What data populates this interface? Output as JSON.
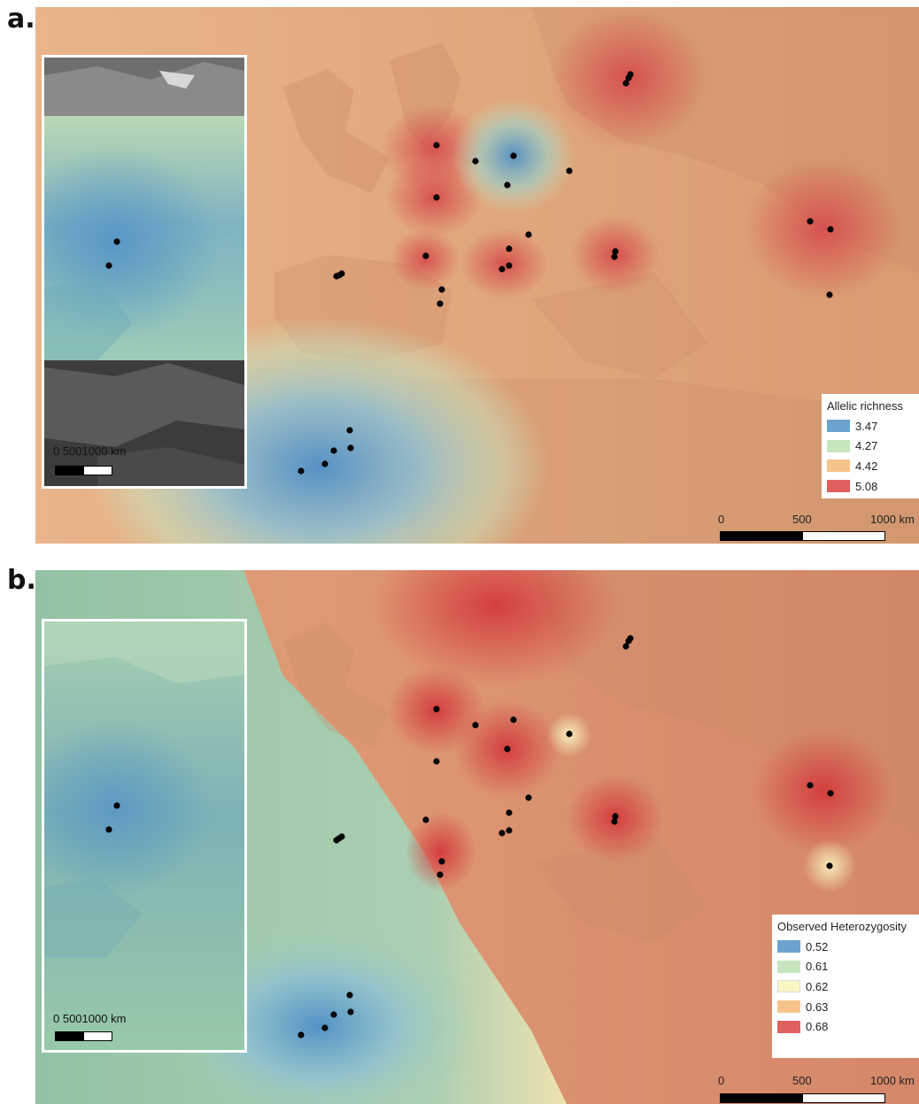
{
  "panels": [
    {
      "letter": "a.",
      "legend": {
        "title": "Allelic richness",
        "items": [
          {
            "label": "3.47",
            "color": "#6aa3cf"
          },
          {
            "label": "4.27",
            "color": "#c7e6bf"
          },
          {
            "label": "4.42",
            "color": "#f6c48b"
          },
          {
            "label": "5.08",
            "color": "#e06060"
          }
        ]
      },
      "scale": {
        "t0": "0",
        "t1": "500",
        "t2": "1000 km"
      },
      "inset_scale": {
        "label": "0  5001000 km"
      }
    },
    {
      "letter": "b.",
      "legend": {
        "title": "Observed Heterozygosity",
        "items": [
          {
            "label": "0.52",
            "color": "#6aa3cf"
          },
          {
            "label": "0.61",
            "color": "#c7e6bf"
          },
          {
            "label": "0.62",
            "color": "#fbf7c4"
          },
          {
            "label": "0.63",
            "color": "#f6c48b"
          },
          {
            "label": "0.68",
            "color": "#e06060"
          }
        ]
      },
      "scale": {
        "t0": "0",
        "t1": "500",
        "t2": "1000 km"
      },
      "inset_scale": {
        "label": "0  5001000 km"
      }
    }
  ]
}
